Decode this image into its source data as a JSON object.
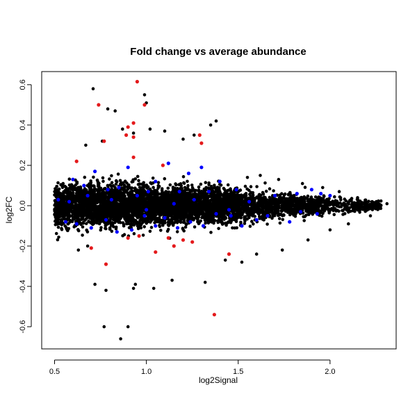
{
  "chart_data": {
    "type": "scatter",
    "title": "Fold change vs average abundance",
    "xlabel": "log2Signal",
    "ylabel": "log2FC",
    "xlim": [
      0.43,
      2.36
    ],
    "ylim": [
      -0.71,
      0.665
    ],
    "x_ticks": [
      0.5,
      1.0,
      1.5,
      2.0
    ],
    "x_tick_labels": [
      "0.5",
      "1.0",
      "1.5",
      "2.0"
    ],
    "y_ticks": [
      -0.6,
      -0.4,
      -0.2,
      0.0,
      0.2,
      0.4,
      0.6
    ],
    "y_tick_labels": [
      "-0.6",
      "-0.4",
      "-0.2",
      "0.0",
      "0.2",
      "0.4",
      "0.6"
    ],
    "grid": false,
    "legend": "none",
    "colors": {
      "background_points": "#000000",
      "highlight_up": "#e41a1c",
      "highlight_mid": "#0000ff"
    },
    "series": [
      {
        "color": "#000000",
        "description": "dense cloud of features: spread roughly ±0.2 near x=0.5–1.4, tapering to ±0.05 by x=2.3",
        "points": [
          [
            0.71,
            0.58
          ],
          [
            0.79,
            0.48
          ],
          [
            0.83,
            0.47
          ],
          [
            0.99,
            0.55
          ],
          [
            1.0,
            0.51
          ],
          [
            0.87,
            0.38
          ],
          [
            0.93,
            0.36
          ],
          [
            1.02,
            0.38
          ],
          [
            1.1,
            0.37
          ],
          [
            1.38,
            0.42
          ],
          [
            1.35,
            0.4
          ],
          [
            0.67,
            0.3
          ],
          [
            0.76,
            0.32
          ],
          [
            1.2,
            0.33
          ],
          [
            1.26,
            0.35
          ],
          [
            0.72,
            -0.39
          ],
          [
            0.78,
            -0.42
          ],
          [
            0.93,
            -0.41
          ],
          [
            0.94,
            -0.39
          ],
          [
            1.04,
            -0.41
          ],
          [
            1.14,
            -0.37
          ],
          [
            1.32,
            -0.38
          ],
          [
            0.77,
            -0.6
          ],
          [
            0.86,
            -0.66
          ],
          [
            0.9,
            -0.6
          ],
          [
            0.63,
            -0.22
          ],
          [
            0.68,
            -0.2
          ],
          [
            1.43,
            -0.27
          ],
          [
            1.52,
            -0.28
          ],
          [
            1.6,
            -0.24
          ],
          [
            1.74,
            -0.22
          ],
          [
            1.88,
            -0.17
          ],
          [
            2.0,
            -0.12
          ],
          [
            2.1,
            -0.09
          ],
          [
            2.22,
            -0.05
          ],
          [
            2.31,
            0.01
          ],
          [
            2.27,
            0.0
          ],
          [
            2.23,
            0.02
          ],
          [
            2.15,
            0.04
          ],
          [
            2.05,
            0.07
          ],
          [
            1.96,
            0.09
          ],
          [
            1.85,
            0.11
          ],
          [
            1.72,
            0.13
          ],
          [
            1.62,
            0.15
          ],
          [
            1.55,
            0.14
          ]
        ]
      },
      {
        "color": "#e41a1c",
        "description": "highlighted features (red)",
        "points": [
          [
            0.95,
            0.615
          ],
          [
            0.74,
            0.5
          ],
          [
            0.99,
            0.5
          ],
          [
            0.93,
            0.41
          ],
          [
            0.9,
            0.39
          ],
          [
            0.89,
            0.35
          ],
          [
            0.93,
            0.34
          ],
          [
            1.29,
            0.35
          ],
          [
            1.3,
            0.31
          ],
          [
            0.77,
            0.32
          ],
          [
            0.62,
            0.22
          ],
          [
            1.09,
            0.2
          ],
          [
            0.93,
            0.24
          ],
          [
            1.37,
            -0.54
          ],
          [
            0.78,
            -0.29
          ],
          [
            0.7,
            -0.21
          ],
          [
            1.45,
            -0.24
          ],
          [
            1.05,
            -0.23
          ],
          [
            1.2,
            -0.17
          ],
          [
            0.9,
            -0.16
          ],
          [
            0.96,
            -0.15
          ],
          [
            1.12,
            -0.16
          ],
          [
            1.25,
            -0.18
          ],
          [
            1.15,
            -0.2
          ]
        ]
      },
      {
        "color": "#0000ff",
        "description": "highlighted features (blue)",
        "points": [
          [
            0.6,
            0.13
          ],
          [
            0.66,
            0.1
          ],
          [
            0.72,
            0.17
          ],
          [
            0.79,
            0.08
          ],
          [
            0.85,
            0.09
          ],
          [
            0.9,
            0.19
          ],
          [
            0.95,
            0.05
          ],
          [
            1.01,
            0.07
          ],
          [
            1.05,
            0.12
          ],
          [
            1.12,
            0.21
          ],
          [
            1.18,
            0.07
          ],
          [
            1.23,
            0.16
          ],
          [
            1.3,
            0.19
          ],
          [
            1.34,
            0.07
          ],
          [
            1.4,
            0.12
          ],
          [
            1.49,
            0.08
          ],
          [
            1.56,
            0.02
          ],
          [
            1.7,
            0.05
          ],
          [
            1.82,
            0.06
          ],
          [
            1.9,
            0.08
          ],
          [
            1.95,
            0.06
          ],
          [
            2.0,
            0.05
          ],
          [
            0.56,
            -0.08
          ],
          [
            0.62,
            -0.09
          ],
          [
            0.7,
            -0.11
          ],
          [
            0.78,
            -0.07
          ],
          [
            0.84,
            -0.13
          ],
          [
            0.92,
            -0.12
          ],
          [
            0.99,
            -0.05
          ],
          [
            1.05,
            -0.1
          ],
          [
            1.1,
            -0.06
          ],
          [
            1.17,
            -0.11
          ],
          [
            1.24,
            -0.08
          ],
          [
            1.31,
            -0.1
          ],
          [
            1.38,
            -0.04
          ],
          [
            1.46,
            -0.05
          ],
          [
            1.52,
            -0.1
          ],
          [
            1.6,
            -0.07
          ],
          [
            1.66,
            -0.05
          ],
          [
            1.78,
            -0.08
          ],
          [
            1.84,
            -0.03
          ],
          [
            1.93,
            -0.04
          ],
          [
            0.52,
            0.03
          ],
          [
            0.58,
            0.02
          ],
          [
            0.68,
            0.05
          ],
          [
            1.45,
            -0.02
          ],
          [
            1.0,
            -0.02
          ],
          [
            1.26,
            0.03
          ],
          [
            0.81,
            0.03
          ],
          [
            1.15,
            0.01
          ]
        ]
      }
    ]
  }
}
